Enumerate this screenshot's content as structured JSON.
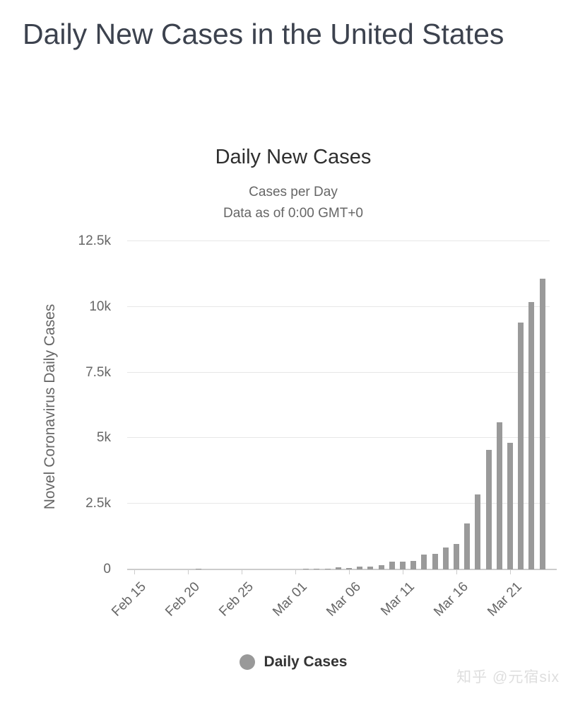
{
  "page": {
    "title": "Daily New Cases in the United States",
    "watermark": "知乎 @元宿six"
  },
  "chart_data": {
    "type": "bar",
    "title": "Daily New Cases",
    "subtitle": "Cases per Day",
    "subtitle2": "Data as of 0:00 GMT+0",
    "ylabel": "Novel Coronavirus Daily Cases",
    "xlabel": "",
    "ylim": [
      0,
      12500
    ],
    "grid": "horizontal",
    "legend_position": "bottom",
    "bar_color": "#9a9a9a",
    "gridline_color": "#e7e7e7",
    "axis_line_color": "#cccccc",
    "ytick_values": [
      0,
      2500,
      5000,
      7500,
      10000,
      12500
    ],
    "ytick_labels": [
      "0",
      "2.5k",
      "5k",
      "7.5k",
      "10k",
      "12.5k"
    ],
    "xtick_labels": [
      "Feb 15",
      "Feb 20",
      "Feb 25",
      "Mar 01",
      "Mar 06",
      "Mar 11",
      "Mar 16",
      "Mar 21"
    ],
    "xtick_day_indices": [
      0,
      5,
      10,
      15,
      20,
      25,
      30,
      35
    ],
    "categories": [
      "Feb 15",
      "Feb 16",
      "Feb 17",
      "Feb 18",
      "Feb 19",
      "Feb 20",
      "Feb 21",
      "Feb 22",
      "Feb 23",
      "Feb 24",
      "Feb 25",
      "Feb 26",
      "Feb 27",
      "Feb 28",
      "Feb 29",
      "Mar 01",
      "Mar 02",
      "Mar 03",
      "Mar 04",
      "Mar 05",
      "Mar 06",
      "Mar 07",
      "Mar 08",
      "Mar 09",
      "Mar 10",
      "Mar 11",
      "Mar 12",
      "Mar 13",
      "Mar 14",
      "Mar 15",
      "Mar 16",
      "Mar 17",
      "Mar 18",
      "Mar 19",
      "Mar 20",
      "Mar 21",
      "Mar 22",
      "Mar 23",
      "Mar 24"
    ],
    "values": [
      0,
      0,
      1,
      0,
      0,
      1,
      19,
      0,
      0,
      0,
      2,
      6,
      1,
      4,
      7,
      3,
      23,
      19,
      33,
      77,
      64,
      116,
      106,
      163,
      290,
      307,
      329,
      553,
      587,
      843,
      983,
      1748,
      2853,
      4562,
      5594,
      4825,
      9400,
      10189,
      11075
    ],
    "legend": [
      {
        "name": "Daily Cases",
        "color": "#999999"
      }
    ]
  }
}
